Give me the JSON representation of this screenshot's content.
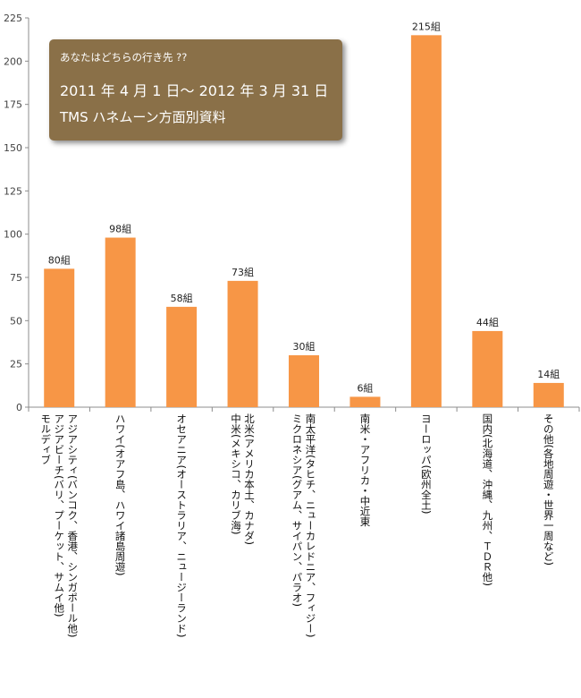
{
  "chart_data": {
    "type": "bar",
    "title_lines": [
      "あなたはどちらの行き先 ??",
      "2011 年 4 月 1 日〜 2012 年 3 月 31 日",
      "TMS ハネムーン方面別資料"
    ],
    "categories": [
      [
        "アジアシティ(バンコク、香港、シンガポール他)",
        "アジアビーチ(バリ、プーケット、サムイ他)",
        "モルディブ"
      ],
      [
        "ハワイ(オアフ島、ハワイ諸島周遊)"
      ],
      [
        "オセアニア(オーストラリア、ニュージーランド)"
      ],
      [
        "北米(アメリカ本土、カナダ)",
        "中米(メキシコ、カリブ海)"
      ],
      [
        "南太平洋(タヒチ、ニューカレドニア、フィジー)",
        "ミクロネシア(グアム、サイパン、パラオ)"
      ],
      [
        "南米・アフリカ・中近東"
      ],
      [
        "ヨーロッパ(欧州全土)"
      ],
      [
        "国内(北海道、沖縄、九州、ＴＤＲ他)"
      ],
      [
        "その他(各地周遊・世界一周など)"
      ]
    ],
    "values": [
      80,
      98,
      58,
      73,
      30,
      6,
      215,
      44,
      14
    ],
    "data_labels": [
      "80組",
      "98組",
      "58組",
      "73組",
      "30組",
      "6組",
      "215組",
      "44組",
      "14組"
    ],
    "yticks": [
      "0",
      "25",
      "50",
      "75",
      "100",
      "125",
      "150",
      "175",
      "200",
      "225"
    ],
    "ylim": [
      0,
      225
    ],
    "grid": false,
    "bar_color": "#f79646",
    "title_box_color": "#8a7048"
  }
}
